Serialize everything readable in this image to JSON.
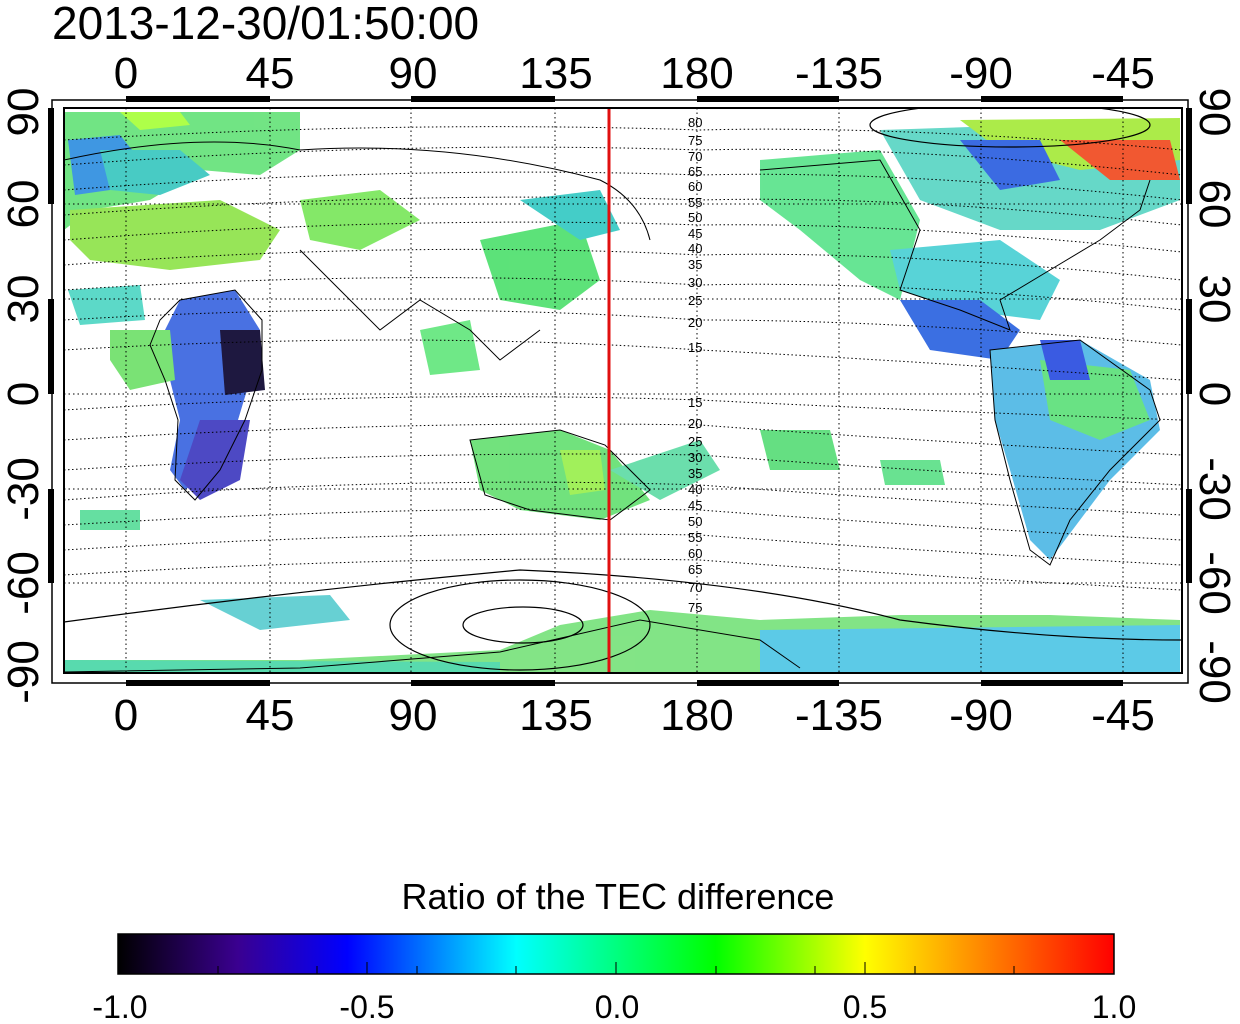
{
  "timestamp": "2013-12-30/01:50:00",
  "map": {
    "top_lon_labels": [
      "0",
      "45",
      "90",
      "135",
      "180",
      "-135",
      "-90",
      "-45"
    ],
    "bottom_lon_labels": [
      "0",
      "45",
      "90",
      "135",
      "180",
      "-135",
      "-90",
      "-45"
    ],
    "left_lat_labels": [
      "90",
      "60",
      "30",
      "0",
      "-30",
      "-60",
      "-90"
    ],
    "right_lat_labels": [
      "90",
      "60",
      "30",
      "0",
      "-30",
      "-60",
      "-90"
    ],
    "contour_labels_north": [
      "80",
      "75",
      "70",
      "65",
      "60",
      "55",
      "50",
      "45",
      "40",
      "35",
      "30",
      "25",
      "20",
      "15"
    ],
    "contour_labels_south": [
      "15",
      "20",
      "25",
      "30",
      "35",
      "40",
      "45",
      "50",
      "55",
      "60",
      "65",
      "70",
      "75"
    ],
    "terminator_color": "#e01010"
  },
  "colorbar": {
    "title": "Ratio of the TEC difference",
    "tick_labels": [
      "-1.0",
      "-0.5",
      "0.0",
      "0.5",
      "1.0"
    ],
    "colors": [
      "#000000",
      "#3a0090",
      "#0000ff",
      "#00ffff",
      "#00ff00",
      "#ffff00",
      "#ff0000"
    ]
  }
}
